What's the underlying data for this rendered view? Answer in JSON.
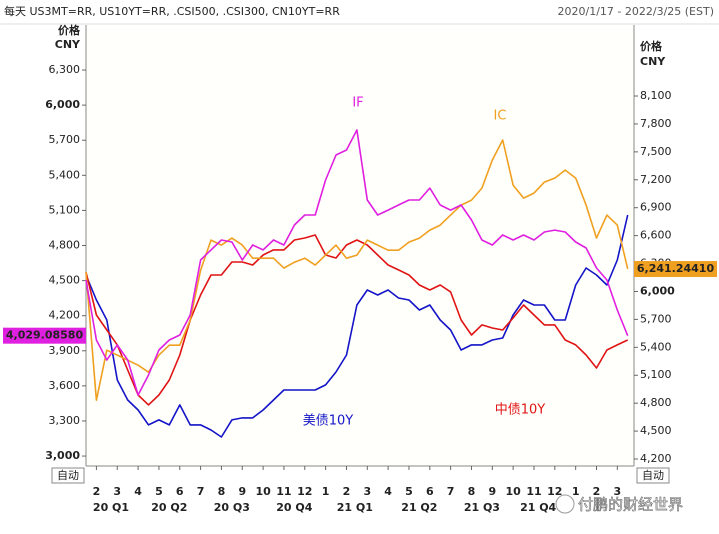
{
  "chart_data": {
    "type": "line",
    "title": "每天 US3MT=RR, US10YT=RR, .CSI500, .CSI300, CN10YT=RR",
    "date_range": "2020/1/17 - 2022/3/25 (EST)",
    "ylabel": "价格",
    "yunit": "CNY",
    "y2label": "价格",
    "y2unit": "CNY",
    "auto_button": "自动",
    "watermark": "付鹏的财经世界",
    "xlim": [
      0.5,
      26.8
    ],
    "xticks": [
      {
        "value": 1,
        "label": "2"
      },
      {
        "value": 2,
        "label": "3"
      },
      {
        "value": 3,
        "label": "4"
      },
      {
        "value": 4,
        "label": "5"
      },
      {
        "value": 5,
        "label": "6"
      },
      {
        "value": 6,
        "label": "7"
      },
      {
        "value": 7,
        "label": "8"
      },
      {
        "value": 8,
        "label": "9"
      },
      {
        "value": 9,
        "label": "10"
      },
      {
        "value": 10,
        "label": "11"
      },
      {
        "value": 11,
        "label": "12"
      },
      {
        "value": 12,
        "label": "1"
      },
      {
        "value": 13,
        "label": "2"
      },
      {
        "value": 14,
        "label": "3"
      },
      {
        "value": 15,
        "label": "4"
      },
      {
        "value": 16,
        "label": "5"
      },
      {
        "value": 17,
        "label": "6"
      },
      {
        "value": 18,
        "label": "7"
      },
      {
        "value": 19,
        "label": "8"
      },
      {
        "value": 20,
        "label": "9"
      },
      {
        "value": 21,
        "label": "10"
      },
      {
        "value": 22,
        "label": "11"
      },
      {
        "value": 23,
        "label": "12"
      },
      {
        "value": 24,
        "label": "1"
      },
      {
        "value": 25,
        "label": "2"
      },
      {
        "value": 26,
        "label": "3"
      }
    ],
    "quarter_ticks": [
      {
        "value": 1.7,
        "label": "20 Q1"
      },
      {
        "value": 4.5,
        "label": "20 Q2"
      },
      {
        "value": 7.5,
        "label": "20 Q3"
      },
      {
        "value": 10.5,
        "label": "20 Q4"
      },
      {
        "value": 13.4,
        "label": "21 Q1"
      },
      {
        "value": 16.5,
        "label": "21 Q2"
      },
      {
        "value": 19.5,
        "label": "21 Q3"
      },
      {
        "value": 22.2,
        "label": "21 Q4"
      }
    ],
    "ylim": [
      2915,
      6685
    ],
    "yticks": [
      {
        "value": 3000,
        "label": "3,000"
      },
      {
        "value": 3300,
        "label": "3,300"
      },
      {
        "value": 3600,
        "label": "3,600"
      },
      {
        "value": 3900,
        "label": "3,900"
      },
      {
        "value": 4200,
        "label": "4,200"
      },
      {
        "value": 4500,
        "label": "4,500"
      },
      {
        "value": 4800,
        "label": "4,800"
      },
      {
        "value": 5100,
        "label": "5,100"
      },
      {
        "value": 5400,
        "label": "5,400"
      },
      {
        "value": 5700,
        "label": "5,700"
      },
      {
        "value": 6000,
        "label": "6,000"
      },
      {
        "value": 6300,
        "label": "6,300"
      }
    ],
    "y2lim": [
      4125,
      8863
    ],
    "y2ticks": [
      {
        "value": 4200,
        "label": "4,200"
      },
      {
        "value": 4500,
        "label": "4,500"
      },
      {
        "value": 4800,
        "label": "4,800"
      },
      {
        "value": 5100,
        "label": "5,100"
      },
      {
        "value": 5400,
        "label": "5,400"
      },
      {
        "value": 5700,
        "label": "5,700"
      },
      {
        "value": 6000,
        "label": "6,000"
      },
      {
        "value": 6300,
        "label": "6,300"
      },
      {
        "value": 6600,
        "label": "6,600"
      },
      {
        "value": 6900,
        "label": "6,900"
      },
      {
        "value": 7200,
        "label": "7,200"
      },
      {
        "value": 7500,
        "label": "7,500"
      },
      {
        "value": 7800,
        "label": "7,800"
      },
      {
        "value": 8100,
        "label": "8,100"
      }
    ],
    "x": [
      0.5,
      1,
      1.5,
      2,
      2.5,
      3,
      3.5,
      4,
      4.5,
      5,
      5.5,
      6,
      6.5,
      7,
      7.5,
      8,
      8.5,
      9,
      9.5,
      10,
      10.5,
      11,
      11.5,
      12,
      12.5,
      13,
      13.5,
      14,
      14.5,
      15,
      15.5,
      16,
      16.5,
      17,
      17.5,
      18,
      18.5,
      19,
      19.5,
      20,
      20.5,
      21,
      21.5,
      22,
      22.5,
      23,
      23.5,
      24,
      24.5,
      25,
      25.5,
      26,
      26.5
    ],
    "series": [
      {
        "name": "美债10Y",
        "color": "#1414c8",
        "values": [
          4548,
          4334,
          4163,
          3650,
          3479,
          3394,
          3266,
          3309,
          3266,
          3437,
          3266,
          3266,
          3223,
          3163,
          3309,
          3326,
          3326,
          3394,
          3479,
          3565,
          3565,
          3565,
          3565,
          3608,
          3719,
          3864,
          4291,
          4420,
          4377,
          4420,
          4351,
          4334,
          4249,
          4291,
          4163,
          4078,
          3907,
          3950,
          3950,
          3992,
          4009,
          4206,
          4334,
          4291,
          4291,
          4163,
          4163,
          4462,
          4608,
          4548,
          4462,
          4676,
          5061
        ]
      },
      {
        "name": "中债10Y",
        "color": "#e01414",
        "values": [
          4573,
          4206,
          4078,
          3950,
          3736,
          3522,
          3437,
          3522,
          3650,
          3864,
          4163,
          4377,
          4548,
          4548,
          4659,
          4659,
          4633,
          4719,
          4762,
          4762,
          4847,
          4864,
          4890,
          4719,
          4693,
          4804,
          4847,
          4804,
          4719,
          4633,
          4591,
          4548,
          4462,
          4420,
          4462,
          4403,
          4163,
          4035,
          4121,
          4095,
          4078,
          4180,
          4291,
          4206,
          4121,
          4121,
          3992,
          3950,
          3864,
          3753,
          3907,
          3950,
          3992
        ]
      },
      {
        "name": "IC",
        "color": "#f0a020",
        "axis": "y2",
        "last_label": "6,241.24410",
        "values": [
          6208,
          4832,
          5369,
          5316,
          5262,
          5208,
          5133,
          5316,
          5423,
          5423,
          5692,
          6229,
          6552,
          6498,
          6573,
          6498,
          6358,
          6358,
          6358,
          6251,
          6315,
          6358,
          6283,
          6391,
          6498,
          6358,
          6391,
          6552,
          6498,
          6444,
          6444,
          6530,
          6573,
          6659,
          6713,
          6821,
          6928,
          6982,
          7111,
          7412,
          7627,
          7143,
          7003,
          7057,
          7175,
          7218,
          7304,
          7218,
          6928,
          6573,
          6821,
          6713,
          6241.2441
        ]
      },
      {
        "name": "IF",
        "color": "#e020e0",
        "last_label": "4,029.08580",
        "values": [
          4505,
          3992,
          3821,
          3950,
          3821,
          3522,
          3693,
          3907,
          3992,
          4035,
          4206,
          4676,
          4762,
          4847,
          4830,
          4676,
          4804,
          4762,
          4847,
          4804,
          4975,
          5061,
          5061,
          5360,
          5574,
          5616,
          5787,
          5189,
          5061,
          5103,
          5146,
          5189,
          5189,
          5291,
          5146,
          5103,
          5146,
          5018,
          4847,
          4804,
          4890,
          4847,
          4890,
          4847,
          4915,
          4932,
          4915,
          4830,
          4779,
          4608,
          4505,
          4249,
          4029.0858
        ]
      }
    ]
  }
}
